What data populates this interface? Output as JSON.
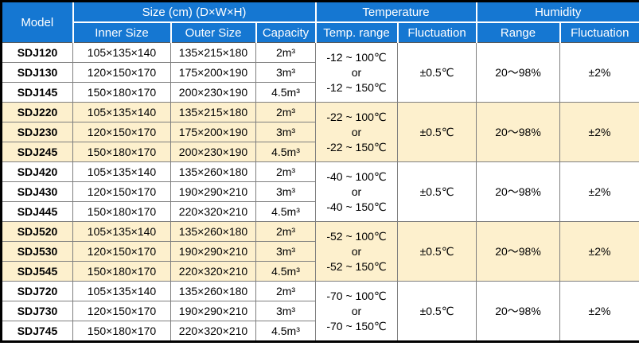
{
  "colors": {
    "header_bg": "#1577d2",
    "header_text": "#ffffff",
    "stripe_bg": "#fdf0cd",
    "row_bg": "#ffffff",
    "grid_line": "#7f7f7f",
    "outer_border": "#000000"
  },
  "header": {
    "model": "Model",
    "size_group": "Size (cm) (D×W×H)",
    "temperature_group": "Temperature",
    "humidity_group": "Humidity",
    "inner_size": "Inner Size",
    "outer_size": "Outer Size",
    "capacity": "Capacity",
    "temp_range": "Temp. range",
    "temp_fluctuation": "Fluctuation",
    "humidity_range": "Range",
    "humidity_fluctuation": "Fluctuation"
  },
  "groups": [
    {
      "highlighted": false,
      "temp_range_lines": [
        "-12 ~ 100℃",
        "or",
        "-12 ~ 150℃"
      ],
      "temp_fluctuation": "±0.5℃",
      "humidity_range": "20～98%",
      "humidity_fluctuation": "±2%",
      "rows": [
        {
          "model": "SDJ120",
          "inner": "105×135×140",
          "outer": "135×215×180",
          "capacity": "2m³"
        },
        {
          "model": "SDJ130",
          "inner": "120×150×170",
          "outer": "175×200×190",
          "capacity": "3m³"
        },
        {
          "model": "SDJ145",
          "inner": "150×180×170",
          "outer": "200×230×190",
          "capacity": "4.5m³"
        }
      ]
    },
    {
      "highlighted": true,
      "temp_range_lines": [
        "-22 ~ 100℃",
        "or",
        "-22 ~ 150℃"
      ],
      "temp_fluctuation": "±0.5℃",
      "humidity_range": "20～98%",
      "humidity_fluctuation": "±2%",
      "rows": [
        {
          "model": "SDJ220",
          "inner": "105×135×140",
          "outer": "135×215×180",
          "capacity": "2m³"
        },
        {
          "model": "SDJ230",
          "inner": "120×150×170",
          "outer": "175×200×190",
          "capacity": "3m³"
        },
        {
          "model": "SDJ245",
          "inner": "150×180×170",
          "outer": "200×230×190",
          "capacity": "4.5m³"
        }
      ]
    },
    {
      "highlighted": false,
      "temp_range_lines": [
        "-40 ~ 100℃",
        "or",
        "-40 ~ 150℃"
      ],
      "temp_fluctuation": "±0.5℃",
      "humidity_range": "20～98%",
      "humidity_fluctuation": "±2%",
      "rows": [
        {
          "model": "SDJ420",
          "inner": "105×135×140",
          "outer": "135×260×180",
          "capacity": "2m³"
        },
        {
          "model": "SDJ430",
          "inner": "120×150×170",
          "outer": "190×290×210",
          "capacity": "3m³"
        },
        {
          "model": "SDJ445",
          "inner": "150×180×170",
          "outer": "220×320×210",
          "capacity": "4.5m³"
        }
      ]
    },
    {
      "highlighted": true,
      "temp_range_lines": [
        "-52 ~ 100℃",
        "or",
        "-52 ~ 150℃"
      ],
      "temp_fluctuation": "±0.5℃",
      "humidity_range": "20～98%",
      "humidity_fluctuation": "±2%",
      "rows": [
        {
          "model": "SDJ520",
          "inner": "105×135×140",
          "outer": "135×260×180",
          "capacity": "2m³"
        },
        {
          "model": "SDJ530",
          "inner": "120×150×170",
          "outer": "190×290×210",
          "capacity": "3m³"
        },
        {
          "model": "SDJ545",
          "inner": "150×180×170",
          "outer": "220×320×210",
          "capacity": "4.5m³"
        }
      ]
    },
    {
      "highlighted": false,
      "temp_range_lines": [
        "-70 ~ 100℃",
        "or",
        "-70 ~ 150℃"
      ],
      "temp_fluctuation": "±0.5℃",
      "humidity_range": "20～98%",
      "humidity_fluctuation": "±2%",
      "rows": [
        {
          "model": "SDJ720",
          "inner": "105×135×140",
          "outer": "135×260×180",
          "capacity": "2m³"
        },
        {
          "model": "SDJ730",
          "inner": "120×150×170",
          "outer": "190×290×210",
          "capacity": "3m³"
        },
        {
          "model": "SDJ745",
          "inner": "150×180×170",
          "outer": "220×320×210",
          "capacity": "4.5m³"
        }
      ]
    }
  ]
}
